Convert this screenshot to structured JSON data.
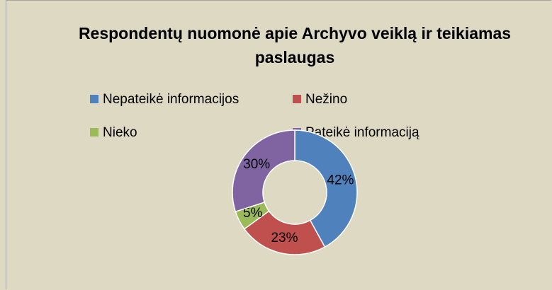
{
  "chart_data": {
    "type": "pie",
    "title": "Respondentų nuomonė apie Archyvo veiklą ir teikiamas paslaugas",
    "categories": [
      "Nepateikė informacijos",
      "Nežino",
      "Nieko",
      "Pateikė informaciją"
    ],
    "values": [
      42,
      23,
      5,
      30
    ],
    "value_labels": [
      "42%",
      "23%",
      "5%",
      "30%"
    ],
    "colors": [
      "#4f81bd",
      "#c0504d",
      "#9bbb59",
      "#8064a2"
    ],
    "donut": true,
    "legend": "top"
  }
}
